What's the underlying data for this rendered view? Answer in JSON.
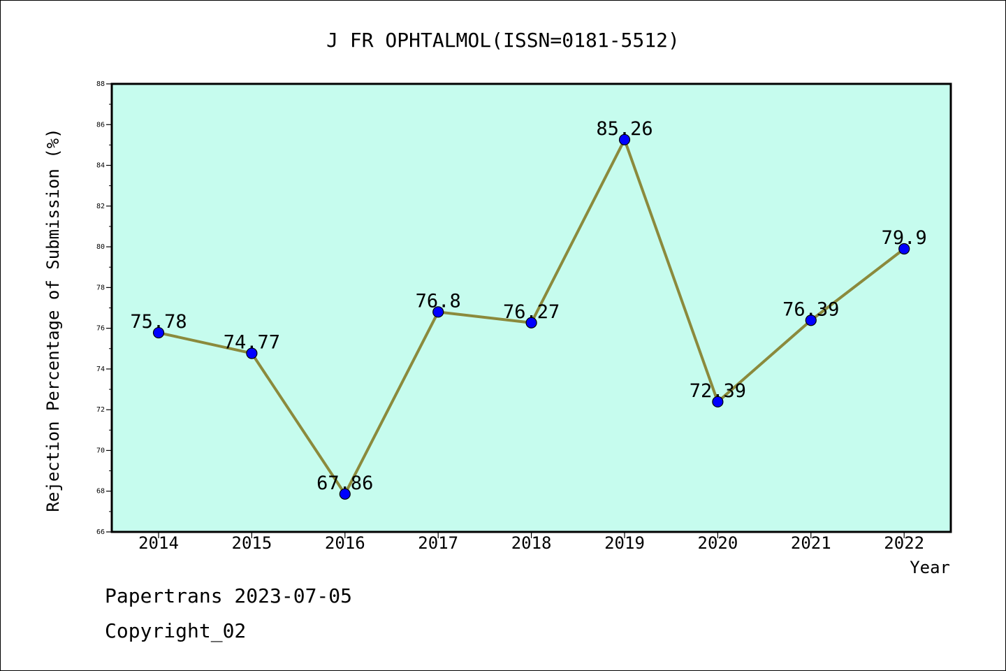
{
  "chart_data": {
    "type": "line",
    "title": "J FR OPHTALMOL(ISSN=0181-5512)",
    "xlabel": "Year",
    "ylabel": "Rejection Percentage of Submission (%)",
    "categories": [
      "2014",
      "2015",
      "2016",
      "2017",
      "2018",
      "2019",
      "2020",
      "2021",
      "2022"
    ],
    "series": [
      {
        "values": [
          75.78,
          74.77,
          67.86,
          76.8,
          76.27,
          85.26,
          72.39,
          76.39,
          79.9
        ],
        "labels": [
          "75.78",
          "74.77",
          "67.86",
          "76.8",
          "76.27",
          "85.26",
          "72.39",
          "76.39",
          "79.9"
        ]
      }
    ],
    "ylim": [
      66,
      88
    ],
    "yticks": [
      "66",
      "68",
      "70",
      "72",
      "74",
      "76",
      "78",
      "80",
      "82",
      "84",
      "86",
      "88"
    ],
    "grid": false,
    "colors": {
      "plot_background": "#c6fcee",
      "line": "#8b8a3c",
      "marker": "#0000ff"
    }
  },
  "footer": {
    "line1": "Papertrans 2023-07-05",
    "line2": "Copyright_02"
  }
}
